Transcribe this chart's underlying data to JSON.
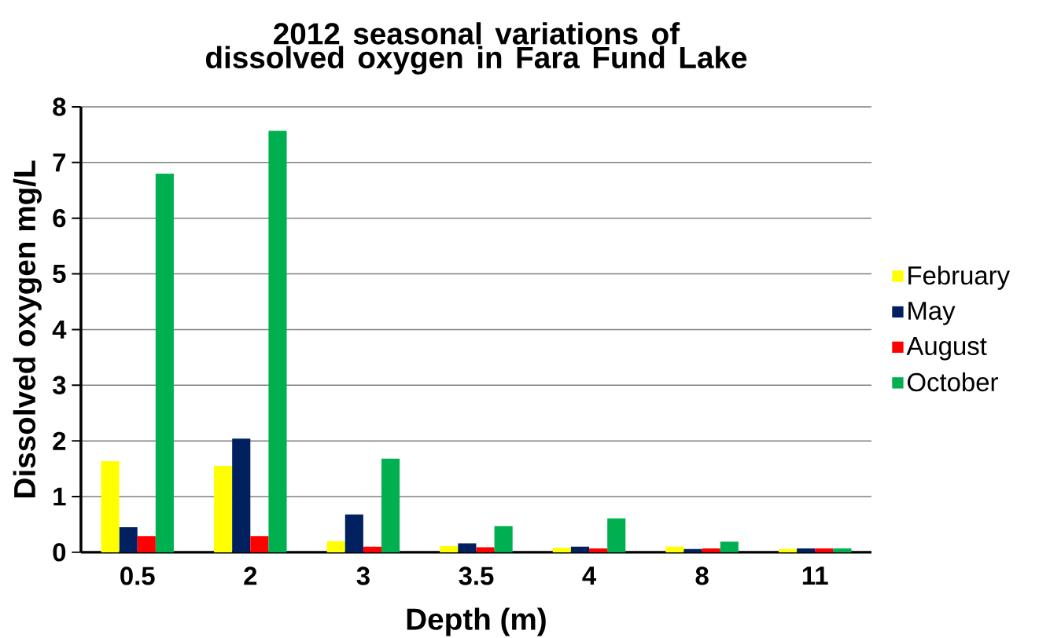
{
  "chart_data": {
    "type": "bar",
    "title": "2012 seasonal variations of dissolved oxygen in Fara Fund Lake",
    "xlabel": "Depth (m)",
    "ylabel": "Dissolved oxygen mg/L",
    "categories": [
      "0.5",
      "2",
      "3",
      "3.5",
      "4",
      "8",
      "11"
    ],
    "series": [
      {
        "name": "February",
        "color": "#ffff00",
        "values": [
          1.64,
          1.55,
          0.2,
          0.11,
          0.08,
          0.1,
          0.06
        ]
      },
      {
        "name": "May",
        "color": "#002060",
        "values": [
          0.45,
          2.04,
          0.68,
          0.16,
          0.1,
          0.06,
          0.07
        ]
      },
      {
        "name": "August",
        "color": "#ff0000",
        "values": [
          0.29,
          0.29,
          0.1,
          0.09,
          0.07,
          0.07,
          0.07
        ]
      },
      {
        "name": "October",
        "color": "#00b050",
        "values": [
          6.8,
          7.57,
          1.68,
          0.47,
          0.61,
          0.19,
          0.07
        ]
      }
    ],
    "ylim": [
      0,
      8
    ],
    "yticks": [
      0,
      1,
      2,
      3,
      4,
      5,
      6,
      7,
      8
    ],
    "grid": "y",
    "legend": "right"
  }
}
